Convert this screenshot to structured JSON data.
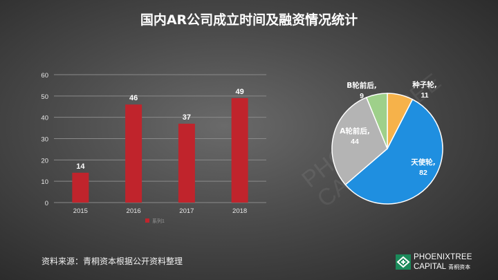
{
  "page": {
    "title": "国内AR公司成立时间及融资情况统计",
    "source": "资料来源：青桐资本根据公开资料整理"
  },
  "brand": {
    "line1": "PHOENIXTREE",
    "line2": "CAPITAL",
    "cn": "青桐资本",
    "watermark_line1": "PHOENIXTREE",
    "watermark_line2": "CAPITAL"
  },
  "colors": {
    "bar": "#c0242c",
    "grid": "#8a8a8a",
    "pie": [
      "#f6b24a",
      "#1f8fe0",
      "#b4b4b4",
      "#9ed08a"
    ]
  },
  "chart_data": [
    {
      "type": "bar",
      "categories": [
        "2015",
        "2016",
        "2017",
        "2018"
      ],
      "values": [
        14,
        46,
        37,
        49
      ],
      "ylim": [
        0,
        60
      ],
      "yticks": [
        0,
        10,
        20,
        30,
        40,
        50,
        60
      ],
      "grid": true,
      "legend": "bottom",
      "series": [
        {
          "name": "系列1",
          "values": [
            14,
            46,
            37,
            49
          ]
        }
      ]
    },
    {
      "type": "pie",
      "labels": [
        "种子轮",
        "天使轮",
        "A轮前后",
        "B轮前后"
      ],
      "values": [
        11,
        82,
        44,
        9
      ]
    }
  ]
}
